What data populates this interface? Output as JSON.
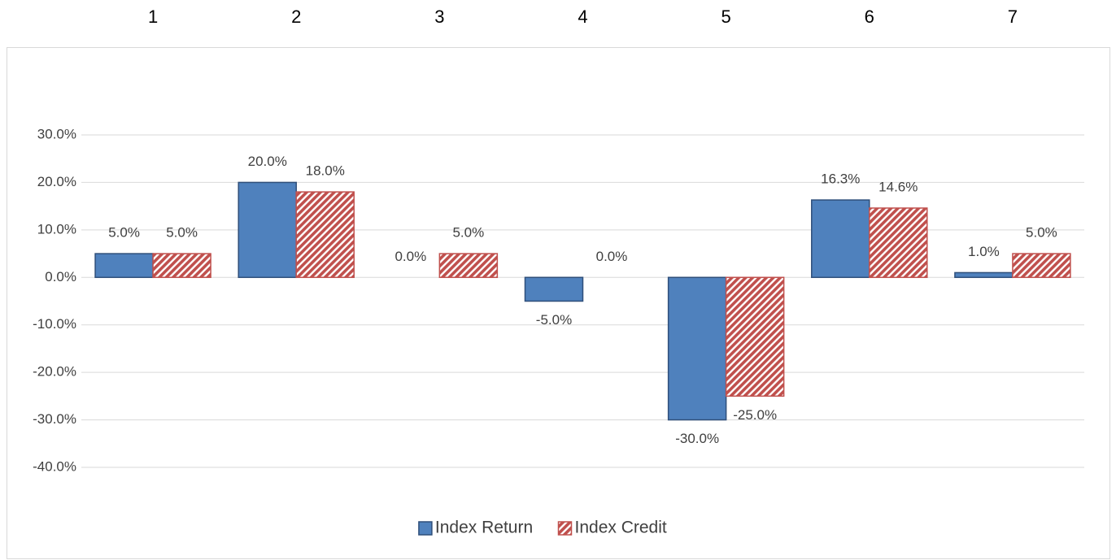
{
  "chart_data": {
    "type": "bar",
    "categories": [
      "1",
      "2",
      "3",
      "4",
      "5",
      "6",
      "7"
    ],
    "series": [
      {
        "name": "Index Return",
        "color": "#4f81bd",
        "pattern": "solid",
        "values": [
          5,
          20,
          0,
          -5,
          -30,
          16.3,
          1
        ],
        "value_labels": [
          "5.0%",
          "20.0%",
          "0.0%",
          "-5.0%",
          "-30.0%",
          "16.3%",
          "1.0%"
        ]
      },
      {
        "name": "Index Credit",
        "color": "#c0504d",
        "pattern": "hatch",
        "values": [
          5,
          18,
          5,
          0,
          -25,
          14.6,
          5
        ],
        "value_labels": [
          "5.0%",
          "18.0%",
          "5.0%",
          "0.0%",
          "-25.0%",
          "14.6%",
          "5.0%"
        ]
      }
    ],
    "ylim": [
      -40,
      30
    ],
    "yticks": [
      {
        "value": -40,
        "label": "-40.0%"
      },
      {
        "value": -30,
        "label": "-30.0%"
      },
      {
        "value": -20,
        "label": "-20.0%"
      },
      {
        "value": -10,
        "label": "-10.0%"
      },
      {
        "value": 0,
        "label": "0.0%"
      },
      {
        "value": 10,
        "label": "10.0%"
      },
      {
        "value": 20,
        "label": "20.0%"
      },
      {
        "value": 30,
        "label": "30.0%"
      }
    ],
    "grid": true,
    "legend": "bottom"
  }
}
